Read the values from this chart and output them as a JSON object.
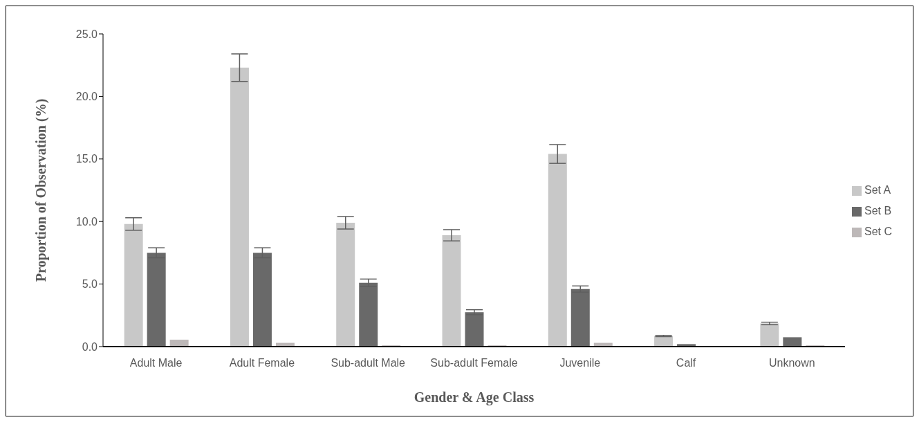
{
  "chart_data": {
    "type": "bar",
    "xlabel": "Gender & Age Class",
    "ylabel": "Proportion of Observation (%)",
    "categories": [
      "Adult Male",
      "Adult Female",
      "Sub-adult Male",
      "Sub-adult Female",
      "Juvenile",
      "Calf",
      "Unknown"
    ],
    "series": [
      {
        "name": "Set A",
        "color": "#c8c8c8",
        "values": [
          9.8,
          22.3,
          9.9,
          8.9,
          15.4,
          0.85,
          1.85
        ],
        "errors": [
          0.5,
          1.1,
          0.5,
          0.45,
          0.75,
          0.05,
          0.1
        ]
      },
      {
        "name": "Set B",
        "color": "#696969",
        "values": [
          7.5,
          7.5,
          5.1,
          2.75,
          4.6,
          0.2,
          0.75
        ],
        "errors": [
          0.4,
          0.4,
          0.3,
          0.2,
          0.25,
          null,
          null
        ]
      },
      {
        "name": "Set C",
        "color": "#bdb8b8",
        "values": [
          0.55,
          0.3,
          0.1,
          0.1,
          0.3,
          null,
          0.1
        ],
        "errors": [
          null,
          null,
          null,
          null,
          null,
          null,
          null
        ]
      }
    ],
    "ylim": [
      0,
      25
    ],
    "yticks": [
      {
        "value": 0,
        "label": "0.0"
      },
      {
        "value": 5,
        "label": "5.0"
      },
      {
        "value": 10,
        "label": "10.0"
      },
      {
        "value": 15,
        "label": "15.0"
      },
      {
        "value": 20,
        "label": "20.0"
      },
      {
        "value": 25,
        "label": "25.0"
      }
    ],
    "grid": false,
    "legend": "right"
  }
}
